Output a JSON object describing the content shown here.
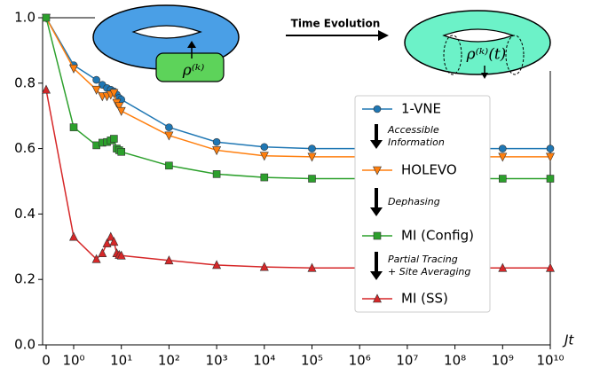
{
  "chart_data": {
    "type": "line",
    "xscale": "symlog",
    "xlabel": "Jt",
    "x": [
      0,
      1,
      3,
      4,
      5,
      6,
      7,
      8,
      9,
      10,
      100,
      1000,
      10000,
      100000,
      1000000,
      10000000,
      100000000,
      1000000000,
      10000000000
    ],
    "series": [
      {
        "name": "1-VNE",
        "color": "#1f77b4",
        "marker": "circle",
        "values": [
          1.0,
          0.855,
          0.81,
          0.795,
          0.785,
          0.78,
          0.775,
          0.765,
          0.755,
          0.75,
          0.665,
          0.62,
          0.605,
          0.6,
          0.6,
          0.6,
          0.6,
          0.6,
          0.6
        ]
      },
      {
        "name": "HOLEVO",
        "color": "#ff7f0e",
        "marker": "triangle-down",
        "values": [
          1.0,
          0.845,
          0.78,
          0.76,
          0.76,
          0.765,
          0.77,
          0.74,
          0.73,
          0.715,
          0.64,
          0.595,
          0.578,
          0.575,
          0.575,
          0.575,
          0.575,
          0.575,
          0.575
        ]
      },
      {
        "name": "MI (Config)",
        "color": "#2ca02c",
        "marker": "square",
        "values": [
          1.0,
          0.665,
          0.61,
          0.618,
          0.62,
          0.625,
          0.63,
          0.6,
          0.595,
          0.59,
          0.548,
          0.522,
          0.512,
          0.508,
          0.508,
          0.508,
          0.508,
          0.508,
          0.508
        ]
      },
      {
        "name": "MI (SS)",
        "color": "#d62728",
        "marker": "triangle-up",
        "values": [
          0.78,
          0.33,
          0.262,
          0.28,
          0.31,
          0.33,
          0.315,
          0.28,
          0.275,
          0.273,
          0.258,
          0.244,
          0.238,
          0.235,
          0.235,
          0.235,
          0.235,
          0.235,
          0.235
        ]
      }
    ],
    "xlim": [
      0,
      10000000000
    ],
    "xticks": [
      0,
      {
        "value": 1,
        "label": "10⁰"
      },
      {
        "value": 10,
        "label": "10¹"
      },
      {
        "value": 100,
        "label": "10²"
      },
      {
        "value": 1000,
        "label": "10³"
      },
      {
        "value": 10000,
        "label": "10⁴"
      },
      {
        "value": 100000,
        "label": "10⁵"
      },
      {
        "value": 1000000,
        "label": "10⁶"
      },
      {
        "value": 10000000,
        "label": "10⁷"
      },
      {
        "value": 100000000,
        "label": "10⁸"
      },
      {
        "value": 1000000000,
        "label": "10⁹"
      },
      {
        "value": 10000000000,
        "label": "10¹⁰"
      }
    ],
    "ylim": [
      0,
      1
    ],
    "yticks": [
      {
        "value": 0,
        "label": "0.0"
      },
      0.2,
      0.4,
      0.6,
      0.8,
      {
        "value": 1,
        "label": "1.0"
      }
    ],
    "legend_annotations": [
      [
        "Accessible",
        "Information"
      ],
      [
        "Dephasing"
      ],
      [
        "Partial Tracing",
        "+ Site Averaging"
      ]
    ],
    "illustration": {
      "arrow_label": "Time Evolution",
      "left_label": "ρ⁽ᵏ⁾",
      "right_label": "ρ⁽ᵏ⁾(t)"
    }
  }
}
